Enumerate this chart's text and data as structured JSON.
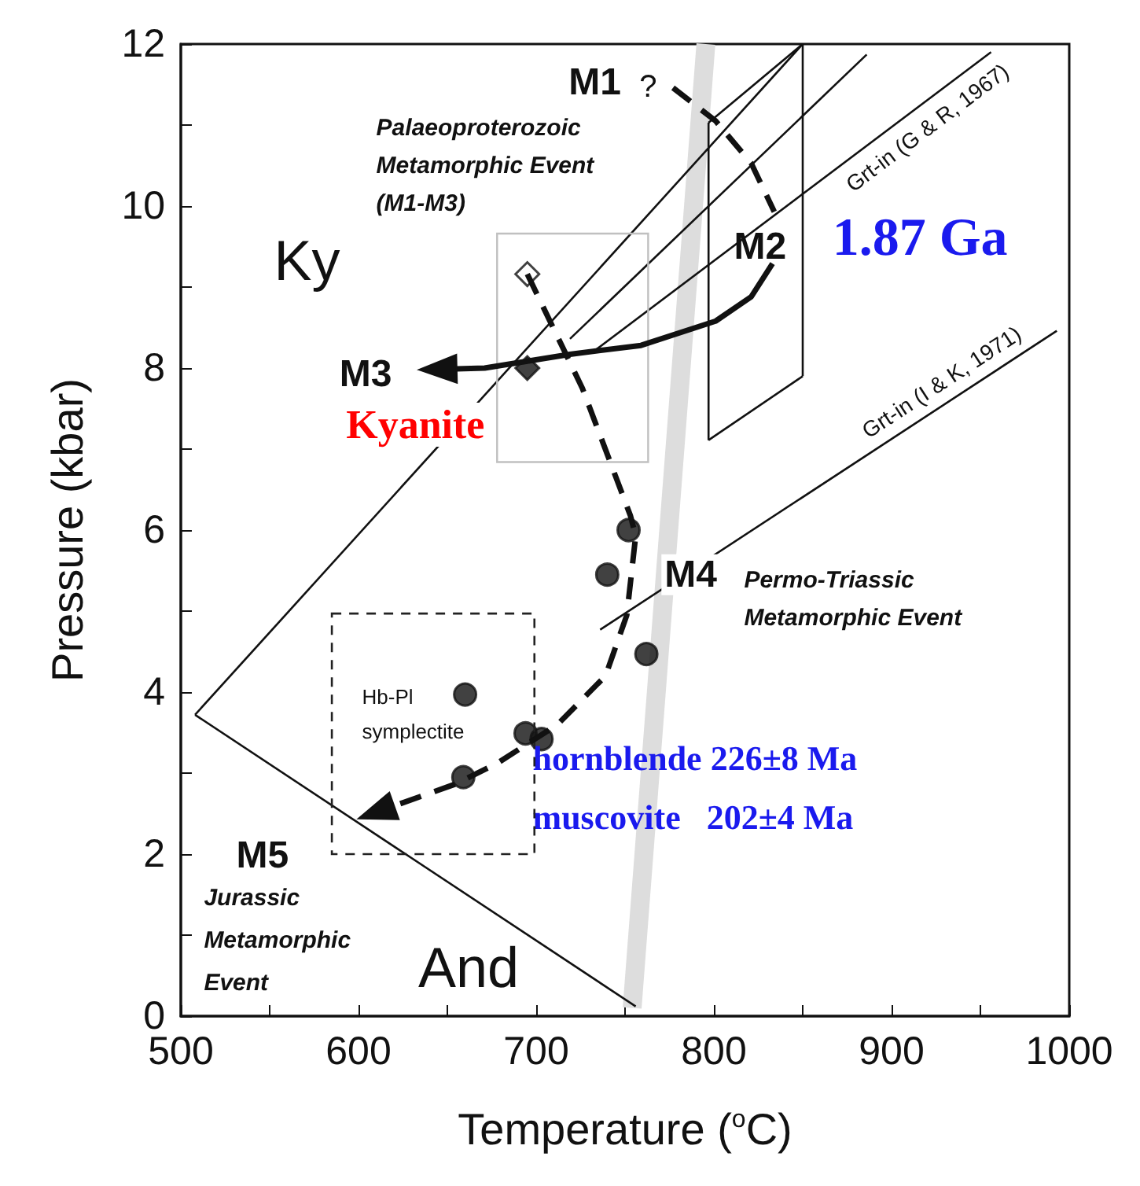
{
  "chart_data": {
    "type": "line",
    "xlabel": "Temperature ($^{o}$C)",
    "ylabel": "Pressure (kbar)",
    "xlim": [
      500,
      1000
    ],
    "xticks": [
      500,
      {
        "value": 550,
        "label": null
      },
      600,
      {
        "value": 650,
        "label": null
      },
      700,
      {
        "value": 750,
        "label": null
      },
      800,
      {
        "value": 850,
        "label": null
      },
      900,
      {
        "value": 950,
        "label": null
      },
      1000
    ],
    "ylim": [
      0,
      12
    ],
    "yticks": [
      0,
      {
        "value": 1,
        "label": null
      },
      2,
      {
        "value": 3,
        "label": null
      },
      4,
      {
        "value": 5,
        "label": null
      },
      6,
      {
        "value": 7,
        "label": null
      },
      8,
      {
        "value": 9,
        "label": null
      },
      10,
      {
        "value": 11,
        "label": null
      },
      12
    ],
    "grid": false,
    "series": [
      {
        "color": "#dddddd",
        "marker": "none",
        "line_style": "solid",
        "x": [
          795.5,
          754
        ],
        "values": [
          12,
          0.1
        ]
      },
      {
        "color": "#111111",
        "marker": "none",
        "line_style": "solid",
        "x": [
          508,
          850
        ],
        "values": [
          3.72,
          12
        ]
      },
      {
        "color": "#111111",
        "marker": "none",
        "line_style": "solid",
        "x": [
          719,
          886
        ],
        "values": [
          8.36,
          11.87
        ]
      },
      {
        "color": "#111111",
        "marker": "none",
        "line_style": "solid",
        "x": [
          732,
          956
        ],
        "values": [
          8.2,
          11.9
        ]
      },
      {
        "color": "#111111",
        "marker": "none",
        "line_style": "solid",
        "x": [
          736,
          993
        ],
        "values": [
          4.77,
          8.46
        ]
      },
      {
        "color": "#111111",
        "marker": "none",
        "line_style": "solid",
        "x": [
          508,
          756
        ],
        "values": [
          3.72,
          0.12
        ]
      },
      {
        "color": "#111111",
        "marker": "none",
        "line_style": "dashed",
        "x": [
          777,
          801,
          821,
          834
        ],
        "values": [
          11.46,
          11.05,
          10.53,
          9.93
        ]
      },
      {
        "color": "#111111",
        "marker": "none",
        "line_style": "solid",
        "x": [
          797,
          850
        ],
        "values": [
          11.03,
          12
        ]
      },
      {
        "color": "#111111",
        "marker": "none",
        "line_style": "solid",
        "x": [
          797,
          850
        ],
        "values": [
          7.11,
          7.9
        ]
      },
      {
        "color": "#111111",
        "marker": "none",
        "line_style": "solid",
        "x": [
          797,
          797
        ],
        "values": [
          7.11,
          11.03
        ]
      },
      {
        "color": "#111111",
        "marker": "none",
        "line_style": "solid",
        "x": [
          850,
          850
        ],
        "values": [
          7.9,
          12
        ]
      },
      {
        "type": "scatter",
        "color": "#111111",
        "marker": "circle",
        "x": [
          752,
          740,
          762,
          660,
          694,
          703,
          659
        ],
        "values": [
          6.0,
          5.45,
          4.47,
          3.97,
          3.49,
          3.42,
          2.95
        ]
      },
      {
        "type": "scatter",
        "color": "#ffffff",
        "marker": "diamond",
        "x": [
          695
        ],
        "values": [
          9.16
        ]
      },
      {
        "type": "scatter",
        "color": "#111111",
        "marker": "diamond",
        "x": [
          695
        ],
        "values": [
          8.0
        ]
      }
    ],
    "annotations": [
      "M1",
      "?",
      "Palaeoproterozoic\nMetamorphic Event\n(M1-M3)",
      "Ky",
      "M2",
      "1.87 Ga",
      "M3",
      "Kyanite",
      "Grt-in (G & R, 1967)",
      "Grt-in (I & K, 1971)",
      "M4",
      "Permo-Triassic\nMetamorphic Event",
      "Hb-Pl\nsymplectite",
      "hornblende 226±8 Ma",
      "muscovite   202±4 Ma",
      "M5",
      "Jurassic\nMetamorphic\nEvent",
      "And"
    ]
  }
}
